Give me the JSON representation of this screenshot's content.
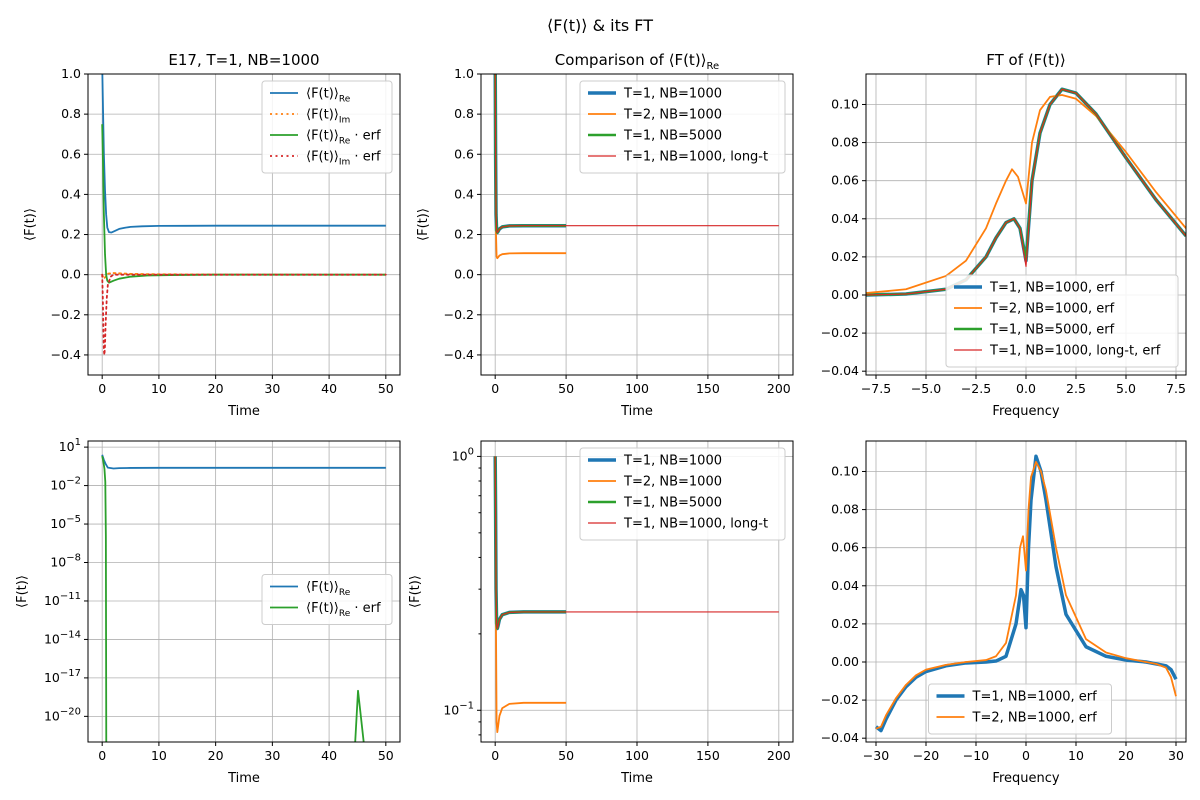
{
  "figure_title": "⟨F(t)⟩ & its FT",
  "colors": {
    "blue": "#1f77b4",
    "orange": "#ff7f0e",
    "green": "#2ca02c",
    "red": "#d62728"
  },
  "chart_data": [
    {
      "id": "top-left",
      "type": "line",
      "title": "E17, T=1, NB=1000",
      "xlabel": "Time",
      "ylabel": "⟨F(t)⟩",
      "xlim": [
        -2.5,
        52.5
      ],
      "ylim": [
        -0.5,
        1.0
      ],
      "xticks": [
        0,
        10,
        20,
        30,
        40,
        50
      ],
      "yticks": [
        -0.4,
        -0.2,
        0.0,
        0.2,
        0.4,
        0.6,
        0.8,
        1.0
      ],
      "yticklabels": [
        "−0.4",
        "−0.2",
        "0.0",
        "0.2",
        "0.4",
        "0.6",
        "0.8",
        "1.0"
      ],
      "grid": true,
      "legend": "top-right",
      "series": [
        {
          "name": "⟨F(t)⟩",
          "name_sub": "Re",
          "color": "blue",
          "dash": "solid",
          "width": 1.8,
          "x": [
            0,
            0.15,
            0.3,
            0.5,
            0.7,
            0.9,
            1.2,
            1.6,
            2,
            3,
            4,
            5,
            7,
            10,
            15,
            20,
            30,
            40,
            50
          ],
          "y": [
            1.05,
            0.82,
            0.6,
            0.42,
            0.3,
            0.235,
            0.212,
            0.21,
            0.215,
            0.228,
            0.234,
            0.238,
            0.241,
            0.243,
            0.2435,
            0.244,
            0.244,
            0.244,
            0.244
          ]
        },
        {
          "name": "⟨F(t)⟩",
          "name_sub": "Im",
          "color": "orange",
          "dash": "dotted",
          "width": 1.8,
          "x": [
            0,
            0.3,
            0.6,
            1,
            2,
            5,
            10,
            20,
            50
          ],
          "y": [
            0,
            -0.02,
            -0.01,
            0.005,
            0.008,
            0.004,
            0.002,
            0.001,
            0.0
          ]
        },
        {
          "name": "⟨F(t)⟩",
          "name_sub": "Re",
          "name_suffix": " · erf",
          "color": "green",
          "dash": "solid",
          "width": 1.8,
          "x": [
            0,
            0.15,
            0.3,
            0.5,
            0.7,
            0.9,
            1.2,
            1.6,
            2,
            3,
            5,
            8,
            12,
            20,
            30,
            40,
            50
          ],
          "y": [
            0.75,
            0.55,
            0.3,
            0.1,
            0.0,
            -0.03,
            -0.04,
            -0.035,
            -0.03,
            -0.02,
            -0.01,
            -0.004,
            -0.002,
            0.0,
            0.0,
            0.0,
            0.0
          ]
        },
        {
          "name": "⟨F(t)⟩",
          "name_sub": "Im",
          "name_suffix": " · erf",
          "color": "red",
          "dash": "dotted",
          "width": 1.8,
          "x": [
            0,
            0.1,
            0.2,
            0.3,
            0.4,
            0.5,
            0.6,
            0.8,
            1.0,
            1.5,
            2,
            3,
            5,
            10,
            20,
            50
          ],
          "y": [
            0,
            -0.1,
            -0.25,
            -0.38,
            -0.4,
            -0.35,
            -0.25,
            -0.12,
            -0.05,
            -0.01,
            0.0,
            0.0,
            0.0,
            0.0,
            0.0,
            0.0
          ]
        }
      ]
    },
    {
      "id": "top-middle",
      "type": "line",
      "title": "Comparison of ⟨F(t)⟩",
      "title_sub": "Re",
      "xlabel": "Time",
      "ylabel": "⟨F(t)⟩",
      "xlim": [
        -10,
        210
      ],
      "ylim": [
        -0.5,
        1.0
      ],
      "xticks": [
        0,
        50,
        100,
        150,
        200
      ],
      "yticks": [
        -0.4,
        -0.2,
        0.0,
        0.2,
        0.4,
        0.6,
        0.8,
        1.0
      ],
      "yticklabels": [
        "−0.4",
        "−0.2",
        "0.0",
        "0.2",
        "0.4",
        "0.6",
        "0.8",
        "1.0"
      ],
      "grid": true,
      "legend": "top-right",
      "series": [
        {
          "name": "T=1, NB=1000",
          "color": "blue",
          "dash": "solid",
          "width": 3.5,
          "x": [
            0,
            0.3,
            0.6,
            1,
            1.5,
            2,
            3,
            5,
            10,
            20,
            50
          ],
          "y": [
            1.05,
            0.6,
            0.3,
            0.22,
            0.21,
            0.215,
            0.228,
            0.238,
            0.243,
            0.244,
            0.244
          ]
        },
        {
          "name": "T=2, NB=1000",
          "color": "orange",
          "dash": "solid",
          "width": 1.8,
          "x": [
            0,
            0.3,
            0.6,
            1,
            1.5,
            2,
            3,
            5,
            10,
            20,
            50
          ],
          "y": [
            1.05,
            0.5,
            0.2,
            0.09,
            0.082,
            0.086,
            0.095,
            0.102,
            0.106,
            0.107,
            0.107
          ]
        },
        {
          "name": "T=1, NB=5000",
          "color": "green",
          "dash": "solid",
          "width": 2.5,
          "x": [
            0,
            0.3,
            0.6,
            1,
            1.5,
            2,
            3,
            5,
            10,
            20,
            50
          ],
          "y": [
            1.05,
            0.6,
            0.3,
            0.22,
            0.21,
            0.215,
            0.228,
            0.238,
            0.243,
            0.244,
            0.244
          ]
        },
        {
          "name": "T=1, NB=1000, long-t",
          "color": "red",
          "dash": "solid",
          "width": 1.2,
          "x": [
            0,
            0.3,
            0.6,
            1,
            1.5,
            2,
            3,
            5,
            10,
            20,
            50,
            100,
            200
          ],
          "y": [
            1.05,
            0.6,
            0.3,
            0.22,
            0.21,
            0.215,
            0.228,
            0.238,
            0.243,
            0.244,
            0.244,
            0.244,
            0.244
          ]
        }
      ]
    },
    {
      "id": "top-right",
      "type": "line",
      "title": "FT of ⟨F(t)⟩",
      "xlabel": "Frequency",
      "ylabel": "",
      "xlim": [
        -8,
        8
      ],
      "ylim": [
        -0.042,
        0.116
      ],
      "xticks": [
        -7.5,
        -5.0,
        -2.5,
        0.0,
        2.5,
        5.0,
        7.5
      ],
      "xticklabels": [
        "−7.5",
        "−5.0",
        "−2.5",
        "0.0",
        "2.5",
        "5.0",
        "7.5"
      ],
      "yticks": [
        -0.04,
        -0.02,
        0.0,
        0.02,
        0.04,
        0.06,
        0.08,
        0.1
      ],
      "yticklabels": [
        "−0.04",
        "−0.02",
        "0.00",
        "0.02",
        "0.04",
        "0.06",
        "0.08",
        "0.10"
      ],
      "grid": true,
      "legend": "bottom-right",
      "series": [
        {
          "name": "T=1, NB=1000, erf",
          "color": "blue",
          "dash": "solid",
          "width": 3.5,
          "x": [
            -8,
            -6,
            -4,
            -3,
            -2,
            -1.5,
            -1,
            -0.6,
            -0.3,
            0,
            0.3,
            0.7,
            1.2,
            1.8,
            2.5,
            3.5,
            5,
            6.5,
            8
          ],
          "y": [
            0.0,
            0.0005,
            0.003,
            0.008,
            0.02,
            0.03,
            0.038,
            0.04,
            0.035,
            0.018,
            0.06,
            0.085,
            0.1,
            0.108,
            0.106,
            0.095,
            0.072,
            0.05,
            0.031
          ]
        },
        {
          "name": "T=2, NB=1000, erf",
          "color": "orange",
          "dash": "solid",
          "width": 1.8,
          "x": [
            -8,
            -6,
            -4,
            -3,
            -2,
            -1.5,
            -1,
            -0.7,
            -0.4,
            -0.2,
            0,
            0.3,
            0.7,
            1.2,
            1.8,
            2.5,
            3.5,
            5,
            6.5,
            8
          ],
          "y": [
            0.001,
            0.003,
            0.01,
            0.018,
            0.035,
            0.048,
            0.06,
            0.066,
            0.062,
            0.055,
            0.048,
            0.08,
            0.097,
            0.104,
            0.105,
            0.103,
            0.094,
            0.075,
            0.054,
            0.035
          ]
        },
        {
          "name": "T=1, NB=5000, erf",
          "color": "green",
          "dash": "solid",
          "width": 2.5,
          "x": [
            -8,
            -6,
            -4,
            -3,
            -2,
            -1.5,
            -1,
            -0.6,
            -0.3,
            0,
            0.3,
            0.7,
            1.2,
            1.8,
            2.5,
            3.5,
            5,
            6.5,
            8
          ],
          "y": [
            0.0,
            0.0005,
            0.003,
            0.008,
            0.02,
            0.03,
            0.038,
            0.04,
            0.035,
            0.018,
            0.06,
            0.085,
            0.1,
            0.108,
            0.106,
            0.095,
            0.072,
            0.05,
            0.031
          ]
        },
        {
          "name": "T=1, NB=1000, long-t, erf",
          "color": "red",
          "dash": "solid",
          "width": 1.2,
          "x": [
            -8,
            -6,
            -4,
            -3,
            -2,
            -1.5,
            -1,
            -0.6,
            -0.3,
            0,
            0.3,
            0.7,
            1.2,
            1.8,
            2.5,
            3.5,
            5,
            6.5,
            8
          ],
          "y": [
            0.0,
            0.0005,
            0.003,
            0.008,
            0.02,
            0.03,
            0.038,
            0.04,
            0.035,
            0.015,
            0.06,
            0.085,
            0.1,
            0.108,
            0.106,
            0.095,
            0.072,
            0.05,
            0.031
          ]
        }
      ]
    },
    {
      "id": "bottom-left",
      "type": "line",
      "title": "",
      "xlabel": "Time",
      "ylabel": "⟨F(t)⟩",
      "yscale": "log",
      "xlim": [
        -2.5,
        52.5
      ],
      "ylim": [
        1e-22,
        30
      ],
      "xticks": [
        0,
        10,
        20,
        30,
        40,
        50
      ],
      "yticks_exp": [
        1,
        -2,
        -5,
        -8,
        -11,
        -14,
        -17,
        -20
      ],
      "grid": true,
      "legend": "center-right",
      "series": [
        {
          "name": "⟨F(t)⟩",
          "name_sub": "Re",
          "color": "blue",
          "dash": "solid",
          "width": 1.8,
          "x": [
            0,
            0.3,
            0.6,
            1,
            2,
            3,
            5,
            10,
            20,
            30,
            40,
            50
          ],
          "y": [
            2.5,
            1.0,
            0.5,
            0.25,
            0.215,
            0.23,
            0.238,
            0.243,
            0.244,
            0.244,
            0.244,
            0.244
          ]
        },
        {
          "name": "⟨F(t)⟩",
          "name_sub": "Re",
          "name_suffix": " · erf",
          "color": "green",
          "dash": "solid",
          "width": 1.8,
          "segments": [
            {
              "x": [
                0,
                0.2,
                0.4,
                0.55,
                0.65,
                0.72
              ],
              "y": [
                2.0,
                0.8,
                0.2,
                0.02,
                1e-06,
                1e-22
              ]
            },
            {
              "x": [
                44.6,
                45.1,
                45.6,
                46.1
              ],
              "y": [
                1e-22,
                1e-18,
                1e-20,
                1e-22
              ]
            }
          ]
        }
      ]
    },
    {
      "id": "bottom-middle",
      "type": "line",
      "title": "",
      "xlabel": "Time",
      "ylabel": "⟨F(t)⟩",
      "yscale": "log",
      "xlim": [
        -10,
        210
      ],
      "ylim": [
        0.075,
        1.15
      ],
      "xticks": [
        0,
        50,
        100,
        150,
        200
      ],
      "yticks_exp": [
        0,
        -1
      ],
      "grid": true,
      "legend": "top-right",
      "series": [
        {
          "name": "T=1, NB=1000",
          "color": "blue",
          "dash": "solid",
          "width": 3.5,
          "x": [
            0,
            0.3,
            0.6,
            1,
            1.5,
            2,
            3,
            5,
            10,
            20,
            50
          ],
          "y": [
            1.0,
            0.6,
            0.3,
            0.22,
            0.21,
            0.215,
            0.228,
            0.238,
            0.243,
            0.244,
            0.244
          ]
        },
        {
          "name": "T=2, NB=1000",
          "color": "orange",
          "dash": "solid",
          "width": 1.8,
          "x": [
            0,
            0.3,
            0.6,
            1,
            1.5,
            2,
            3,
            5,
            10,
            20,
            50
          ],
          "y": [
            1.0,
            0.5,
            0.2,
            0.09,
            0.082,
            0.086,
            0.095,
            0.102,
            0.106,
            0.107,
            0.107
          ]
        },
        {
          "name": "T=1, NB=5000",
          "color": "green",
          "dash": "solid",
          "width": 2.5,
          "x": [
            0,
            0.3,
            0.6,
            1,
            1.5,
            2,
            3,
            5,
            10,
            20,
            50
          ],
          "y": [
            1.0,
            0.6,
            0.3,
            0.22,
            0.21,
            0.215,
            0.228,
            0.238,
            0.243,
            0.244,
            0.244
          ]
        },
        {
          "name": "T=1, NB=1000, long-t",
          "color": "red",
          "dash": "solid",
          "width": 1.2,
          "x": [
            0,
            0.3,
            0.6,
            1,
            1.5,
            2,
            3,
            5,
            10,
            20,
            50,
            100,
            200
          ],
          "y": [
            1.0,
            0.6,
            0.3,
            0.22,
            0.21,
            0.215,
            0.228,
            0.238,
            0.243,
            0.244,
            0.244,
            0.244,
            0.244
          ]
        }
      ]
    },
    {
      "id": "bottom-right",
      "type": "line",
      "title": "",
      "xlabel": "Frequency",
      "ylabel": "",
      "xlim": [
        -32,
        32
      ],
      "ylim": [
        -0.042,
        0.116
      ],
      "xticks": [
        -30,
        -20,
        -10,
        0,
        10,
        20,
        30
      ],
      "xticklabels": [
        "−30",
        "−20",
        "−10",
        "0",
        "10",
        "20",
        "30"
      ],
      "yticks": [
        -0.04,
        -0.02,
        0.0,
        0.02,
        0.04,
        0.06,
        0.08,
        0.1
      ],
      "yticklabels": [
        "−0.04",
        "−0.02",
        "0.00",
        "0.02",
        "0.04",
        "0.06",
        "0.08",
        "0.10"
      ],
      "grid": true,
      "legend": "bottom-center",
      "series": [
        {
          "name": "T=1, NB=1000, erf",
          "color": "blue",
          "dash": "solid",
          "width": 3.5,
          "x": [
            -30,
            -29,
            -28,
            -26,
            -24,
            -22,
            -20,
            -16,
            -12,
            -8,
            -6,
            -4,
            -2,
            -1,
            -0.5,
            0,
            0.5,
            1,
            2,
            3,
            4,
            6,
            8,
            12,
            16,
            20,
            24,
            26,
            28,
            29,
            30
          ],
          "y": [
            -0.034,
            -0.036,
            -0.03,
            -0.02,
            -0.013,
            -0.008,
            -0.005,
            -0.002,
            -0.0005,
            0.0,
            0.0005,
            0.003,
            0.02,
            0.038,
            0.035,
            0.018,
            0.06,
            0.085,
            0.108,
            0.1,
            0.085,
            0.05,
            0.025,
            0.008,
            0.003,
            0.001,
            0.0,
            -0.001,
            -0.002,
            -0.004,
            -0.009
          ]
        },
        {
          "name": "T=2, NB=1000, erf",
          "color": "orange",
          "dash": "solid",
          "width": 1.8,
          "x": [
            -30,
            -29,
            -28,
            -26,
            -24,
            -22,
            -20,
            -16,
            -12,
            -8,
            -6,
            -4,
            -2,
            -1.2,
            -0.6,
            0,
            0.5,
            1,
            2,
            3,
            4,
            6,
            8,
            12,
            16,
            20,
            24,
            26,
            28,
            29,
            30
          ],
          "y": [
            -0.035,
            -0.034,
            -0.028,
            -0.019,
            -0.012,
            -0.007,
            -0.004,
            -0.0015,
            0.0,
            0.001,
            0.003,
            0.01,
            0.035,
            0.06,
            0.066,
            0.048,
            0.08,
            0.097,
            0.105,
            0.1,
            0.09,
            0.06,
            0.035,
            0.012,
            0.005,
            0.002,
            0.0,
            -0.001,
            -0.003,
            -0.008,
            -0.018
          ]
        }
      ]
    }
  ]
}
